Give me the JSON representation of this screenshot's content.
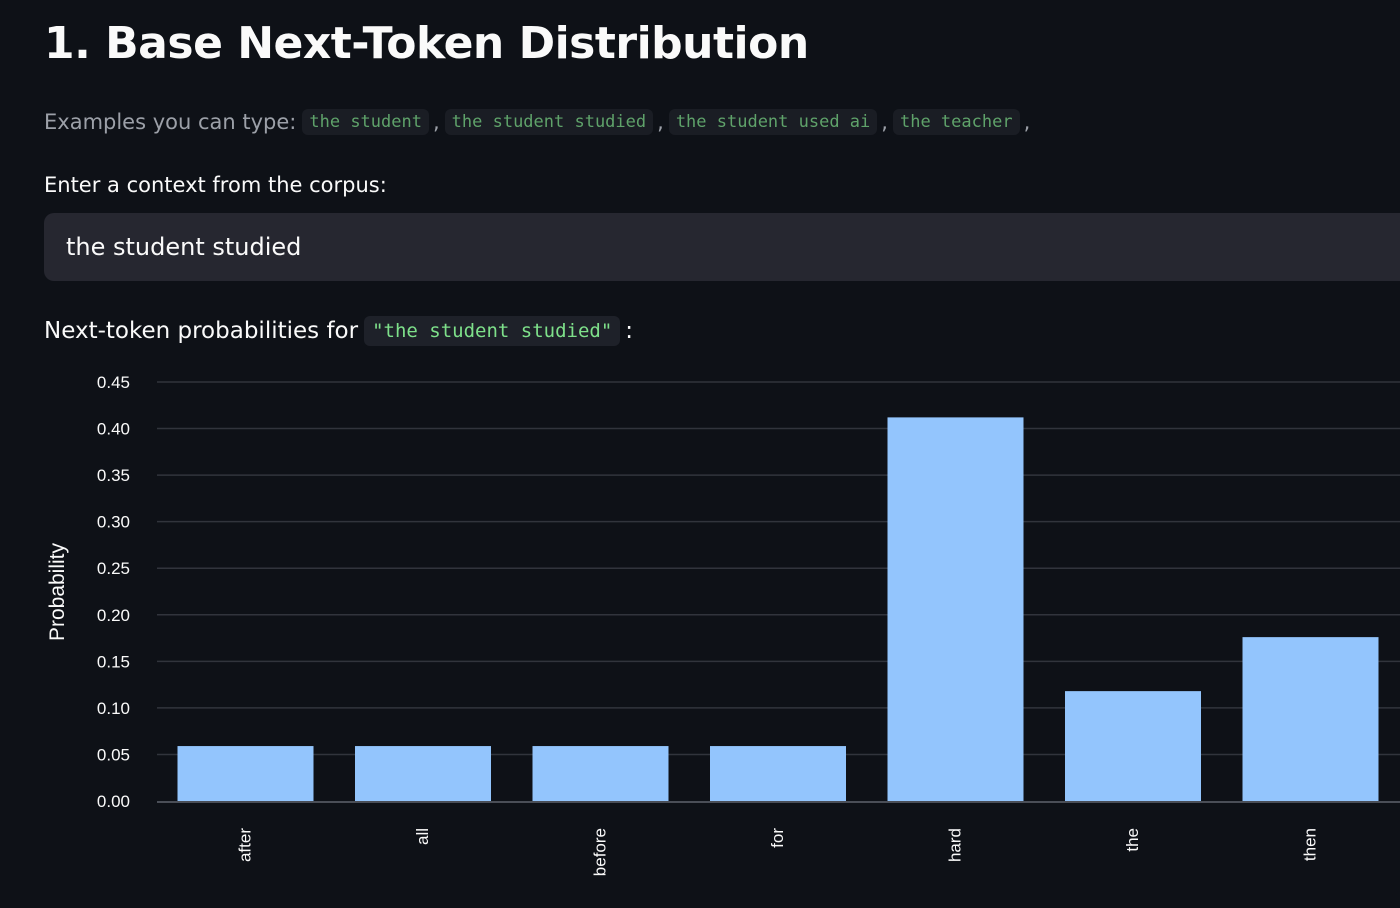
{
  "page": {
    "title": "1. Base Next-Token Distribution",
    "examples_label": "Examples you can type:",
    "examples": [
      "the student",
      "the student studied",
      "the student used ai",
      "the teacher"
    ],
    "examples_separator": ",",
    "input_label": "Enter a context from the corpus:",
    "input_value": "the student studied",
    "subheading_prefix": "Next-token probabilities for",
    "subheading_code": "\"the student studied\"",
    "subheading_suffix": ":"
  },
  "colors": {
    "background": "#0e1117",
    "bar": "#93c5fd",
    "input_background": "#262730",
    "code_green": "#7ee08a"
  },
  "chart_data": {
    "type": "bar",
    "title": "",
    "xlabel": "",
    "ylabel": "Probability",
    "categories": [
      "after",
      "all",
      "before",
      "for",
      "hard",
      "the",
      "then"
    ],
    "values": [
      0.059,
      0.059,
      0.059,
      0.059,
      0.412,
      0.118,
      0.176
    ],
    "ylim": [
      0,
      0.45
    ],
    "yticks": [
      0,
      0.05,
      0.1,
      0.15,
      0.2,
      0.25,
      0.3,
      0.35,
      0.4,
      0.45
    ],
    "ytick_labels": [
      "0.00",
      "0.05",
      "0.10",
      "0.15",
      "0.20",
      "0.25",
      "0.30",
      "0.35",
      "0.40",
      "0.45"
    ],
    "grid": true,
    "legend": "none"
  }
}
